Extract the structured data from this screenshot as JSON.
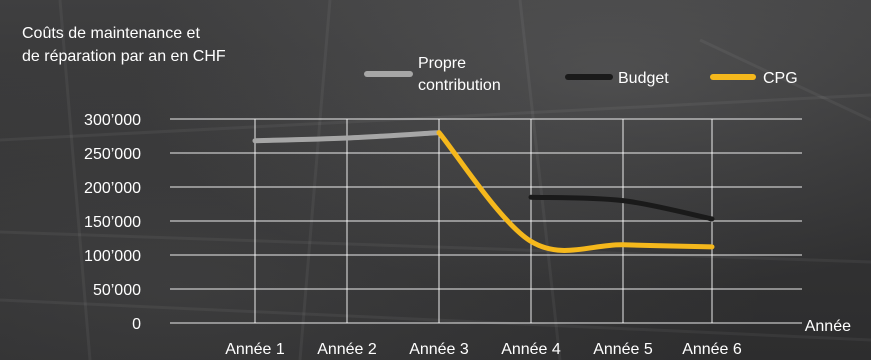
{
  "chart_data": {
    "type": "line",
    "title_lines": [
      "Coûts de maintenance et",
      "de réparation par an en CHF"
    ],
    "xlabel": "Année",
    "categories": [
      "Année 1",
      "Année 2",
      "Année 3",
      "Année 4",
      "Année 5",
      "Année 6"
    ],
    "yticks": [
      "0",
      "50’000",
      "100’000",
      "150’000",
      "200’000",
      "250’000",
      "300’000"
    ],
    "ylim": [
      0,
      300000
    ],
    "grid": true,
    "legend_position": "top",
    "series": [
      {
        "name_lines": [
          "Propre",
          "contribution"
        ],
        "color": "#a6a6a6",
        "values": [
          268000,
          272000,
          280000,
          null,
          null,
          null
        ]
      },
      {
        "name_lines": [
          "Budget"
        ],
        "color": "#1a1a1a",
        "values": [
          null,
          null,
          null,
          185000,
          180000,
          153000
        ]
      },
      {
        "name_lines": [
          "CPG"
        ],
        "color": "#f5b81c",
        "values": [
          null,
          null,
          280000,
          120000,
          115000,
          112000
        ]
      }
    ]
  }
}
